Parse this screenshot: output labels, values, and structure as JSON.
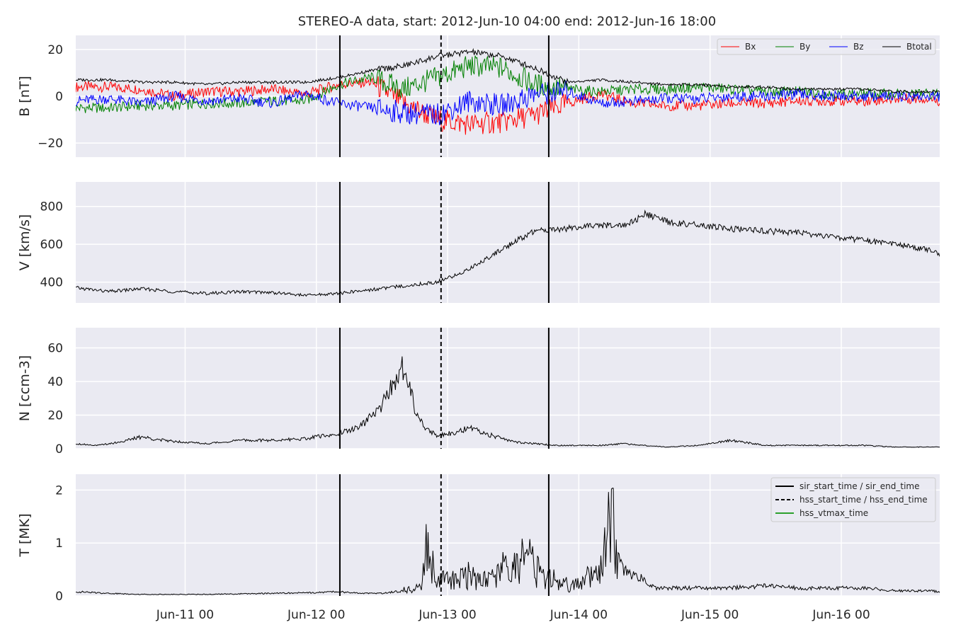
{
  "figure": {
    "title": "STEREO-A data, start: 2012-Jun-10 04:00  end: 2012-Jun-16 18:00"
  },
  "colors": {
    "panel_bg": "#eaeaf2",
    "grid": "#ffffff",
    "bx": "#ff0000",
    "by": "#008000",
    "bz": "#0000ff",
    "btotal": "#000000",
    "vtmax": "#2ca02c"
  },
  "chart_data": [
    {
      "type": "line",
      "ylabel": "B [nT]",
      "xlim": [
        0,
        158
      ],
      "ylim": [
        -26,
        26
      ],
      "yticks": [
        -20,
        0,
        20
      ],
      "ytick_labels": [
        "−20",
        "0",
        "20"
      ],
      "grid": true,
      "legend": {
        "placement": "top-right",
        "columns": 4,
        "entries": [
          "Bx",
          "By",
          "Bz",
          "Btotal"
        ]
      },
      "series": [
        {
          "name": "Bx",
          "x": [
            0,
            6,
            12,
            18,
            24,
            30,
            36,
            42,
            48,
            54,
            60,
            66,
            72,
            78,
            84,
            90,
            96,
            102,
            108,
            114,
            120,
            126,
            132,
            138,
            144,
            150,
            156,
            158
          ],
          "y": [
            4,
            4,
            3,
            0,
            2,
            2,
            3,
            1,
            5,
            6,
            -3,
            -10,
            -12,
            -11,
            -8,
            -3,
            1,
            -3,
            -4,
            -4,
            -3,
            -3,
            -2,
            -2,
            -2,
            -1,
            -1,
            -2
          ]
        },
        {
          "name": "By",
          "x": [
            0,
            6,
            12,
            18,
            24,
            30,
            36,
            42,
            48,
            54,
            60,
            66,
            72,
            78,
            84,
            90,
            96,
            102,
            108,
            114,
            120,
            126,
            132,
            138,
            144,
            150,
            156,
            158
          ],
          "y": [
            -5,
            -5,
            -4,
            -4,
            -3,
            -3,
            -2,
            -2,
            5,
            8,
            3,
            8,
            13,
            12,
            5,
            3,
            2,
            3,
            3,
            4,
            3,
            2,
            2,
            1,
            1,
            1,
            1,
            1
          ]
        },
        {
          "name": "Bz",
          "x": [
            0,
            6,
            12,
            18,
            24,
            30,
            36,
            42,
            48,
            54,
            60,
            66,
            72,
            78,
            84,
            90,
            96,
            102,
            108,
            114,
            120,
            126,
            132,
            138,
            144,
            150,
            156,
            158
          ],
          "y": [
            -2,
            -1,
            -3,
            0,
            -2,
            -1,
            -3,
            1,
            -3,
            -5,
            -7,
            -8,
            -2,
            -4,
            1,
            2,
            -3,
            -2,
            -1,
            -1,
            0,
            0,
            1,
            0,
            0,
            0,
            0,
            0
          ]
        },
        {
          "name": "Btotal",
          "x": [
            0,
            6,
            12,
            18,
            24,
            30,
            36,
            42,
            48,
            54,
            60,
            66,
            72,
            78,
            84,
            90,
            96,
            102,
            108,
            114,
            120,
            126,
            132,
            138,
            144,
            150,
            156,
            158
          ],
          "y": [
            7,
            7,
            6,
            6,
            5,
            6,
            6,
            6,
            8,
            11,
            13,
            17,
            19,
            17,
            12,
            6,
            7,
            6,
            5,
            5,
            4,
            4,
            3,
            3,
            3,
            2,
            2,
            2
          ]
        }
      ]
    },
    {
      "type": "line",
      "ylabel": "V [km/s]",
      "xlim": [
        0,
        158
      ],
      "ylim": [
        290,
        930
      ],
      "yticks": [
        400,
        600,
        800
      ],
      "ytick_labels": [
        "400",
        "600",
        "800"
      ],
      "grid": true,
      "series": [
        {
          "name": "",
          "x": [
            0,
            6,
            12,
            18,
            24,
            30,
            36,
            42,
            48,
            54,
            60,
            66,
            69,
            72,
            76,
            80,
            84,
            88,
            92,
            96,
            100,
            102,
            104,
            108,
            114,
            120,
            126,
            132,
            138,
            144,
            150,
            156,
            158
          ],
          "y": [
            370,
            350,
            365,
            350,
            340,
            350,
            345,
            330,
            340,
            360,
            380,
            400,
            430,
            470,
            540,
            610,
            670,
            680,
            690,
            700,
            700,
            720,
            760,
            720,
            700,
            680,
            670,
            660,
            640,
            620,
            600,
            570,
            545
          ]
        }
      ]
    },
    {
      "type": "line",
      "ylabel": "N [ccm-3]",
      "xlim": [
        0,
        158
      ],
      "ylim": [
        0,
        72
      ],
      "yticks": [
        0,
        20,
        40,
        60
      ],
      "ytick_labels": [
        "0",
        "20",
        "40",
        "60"
      ],
      "grid": true,
      "series": [
        {
          "name": "",
          "x": [
            0,
            4,
            8,
            12,
            16,
            20,
            24,
            30,
            36,
            42,
            48,
            52,
            56,
            58,
            60,
            62,
            64,
            66,
            68,
            72,
            76,
            80,
            84,
            88,
            92,
            96,
            100,
            104,
            108,
            114,
            120,
            126,
            132,
            138,
            144,
            150,
            156,
            158
          ],
          "y": [
            3,
            2,
            4,
            7,
            5,
            4,
            3,
            5,
            5,
            6,
            9,
            13,
            25,
            40,
            48,
            25,
            12,
            8,
            9,
            12,
            8,
            4,
            3,
            2,
            2,
            2,
            3,
            2,
            1,
            2,
            5,
            2,
            2,
            2,
            2,
            1,
            1,
            1
          ]
        }
      ]
    },
    {
      "type": "line",
      "ylabel": "T [MK]",
      "xlim": [
        0,
        158
      ],
      "ylim": [
        0,
        2.3
      ],
      "yticks": [
        0,
        1,
        2
      ],
      "ytick_labels": [
        "0",
        "1",
        "2"
      ],
      "grid": true,
      "legend": {
        "placement": "top-right",
        "entries": [
          "sir_start_time / sir_end_time",
          "hss_start_time / hss_end_time",
          "hss_vtmax_time"
        ]
      },
      "series": [
        {
          "name": "",
          "x": [
            0,
            6,
            12,
            18,
            24,
            30,
            36,
            42,
            48,
            52,
            56,
            60,
            63,
            64,
            66,
            68,
            70,
            72,
            74,
            76,
            78,
            80,
            82,
            84,
            86,
            88,
            90,
            92,
            94,
            96,
            98,
            99,
            100,
            102,
            104,
            106,
            108,
            110,
            114,
            120,
            126,
            132,
            138,
            144,
            150,
            156,
            158
          ],
          "y": [
            0.08,
            0.05,
            0.03,
            0.03,
            0.03,
            0.04,
            0.05,
            0.06,
            0.08,
            0.05,
            0.05,
            0.1,
            0.2,
            0.9,
            0.3,
            0.3,
            0.3,
            0.4,
            0.3,
            0.3,
            0.5,
            0.5,
            0.8,
            0.5,
            0.3,
            0.3,
            0.2,
            0.2,
            0.4,
            0.5,
            1.5,
            0.8,
            0.5,
            0.4,
            0.3,
            0.15,
            0.15,
            0.15,
            0.15,
            0.15,
            0.2,
            0.15,
            0.15,
            0.15,
            0.1,
            0.1,
            0.08
          ]
        }
      ]
    }
  ],
  "markers": {
    "sir_start": 48.3,
    "hss_start": 66.8,
    "sir_end": 86.5
  },
  "xaxis": {
    "tick_hours": [
      20,
      44,
      68,
      92,
      116,
      140
    ],
    "tick_labels": [
      "Jun-11 00",
      "Jun-12 00",
      "Jun-13 00",
      "Jun-14 00",
      "Jun-15 00",
      "Jun-16 00"
    ]
  }
}
